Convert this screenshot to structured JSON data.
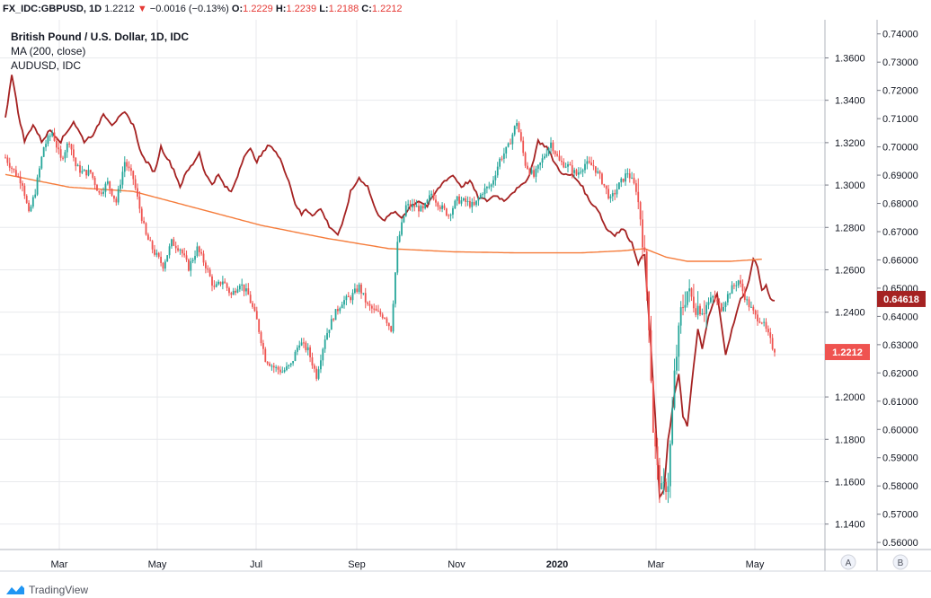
{
  "header": {
    "symbol": "FX_IDC:GBPUSD, 1D",
    "last": "1.2212",
    "arrow": "▼",
    "change": "−0.0016 (−0.13%)",
    "o_label": "O:",
    "o": "1.2229",
    "h_label": "H:",
    "h": "1.2239",
    "l_label": "L:",
    "l": "1.2188",
    "c_label": "C:",
    "c": "1.2212"
  },
  "legend": {
    "title": "British Pound / U.S. Dollar, 1D, IDC",
    "ma": "MA (200, close)",
    "overlay": "AUDUSD, IDC"
  },
  "scale_buttons": {
    "a": "A",
    "b": "B"
  },
  "footer": {
    "brand": "TradingView"
  },
  "colors": {
    "up": "#26a69a",
    "down": "#ef5350",
    "ma": "#f57c3b",
    "overlay": "#a52222",
    "grid": "#e8eaed"
  },
  "chart_data": {
    "type": "candlestick",
    "title": "British Pound / U.S. Dollar, 1D, IDC",
    "x_tick_labels": [
      "Mar",
      "May",
      "Jul",
      "Sep",
      "Nov",
      "2020",
      "Mar",
      "May"
    ],
    "right_axis": {
      "range": [
        1.128,
        1.378
      ],
      "ticks": [
        "1.3600",
        "1.3400",
        "1.3200",
        "1.3000",
        "1.2800",
        "1.2600",
        "1.2400",
        "1.2200",
        "1.2000",
        "1.1800",
        "1.1600",
        "1.1400"
      ],
      "last_price_label": "1.2212"
    },
    "far_right_axis": {
      "range": [
        0.5575,
        0.745
      ],
      "ticks": [
        "0.74000",
        "0.73000",
        "0.72000",
        "0.71000",
        "0.70000",
        "0.69000",
        "0.68000",
        "0.67000",
        "0.66000",
        "0.65000",
        "0.64000",
        "0.63000",
        "0.62000",
        "0.61000",
        "0.60000",
        "0.59000",
        "0.58000",
        "0.57000",
        "0.56000"
      ],
      "last_price_label": "0.64618"
    },
    "series": [
      {
        "name": "GBPUSD",
        "axis": "right",
        "close_anchors": [
          [
            0,
            1.313
          ],
          [
            3,
            1.308
          ],
          [
            8,
            1.301
          ],
          [
            11,
            1.286
          ],
          [
            14,
            1.297
          ],
          [
            18,
            1.318
          ],
          [
            22,
            1.325
          ],
          [
            26,
            1.312
          ],
          [
            30,
            1.321
          ],
          [
            33,
            1.309
          ],
          [
            36,
            1.306
          ],
          [
            40,
            1.306
          ],
          [
            44,
            1.296
          ],
          [
            48,
            1.301
          ],
          [
            52,
            1.292
          ],
          [
            56,
            1.311
          ],
          [
            60,
            1.303
          ],
          [
            63,
            1.289
          ],
          [
            66,
            1.276
          ],
          [
            70,
            1.268
          ],
          [
            74,
            1.262
          ],
          [
            78,
            1.273
          ],
          [
            82,
            1.27
          ],
          [
            86,
            1.261
          ],
          [
            90,
            1.27
          ],
          [
            94,
            1.262
          ],
          [
            98,
            1.251
          ],
          [
            102,
            1.255
          ],
          [
            106,
            1.248
          ],
          [
            110,
            1.254
          ],
          [
            114,
            1.248
          ],
          [
            118,
            1.236
          ],
          [
            122,
            1.218
          ],
          [
            126,
            1.214
          ],
          [
            130,
            1.212
          ],
          [
            134,
            1.215
          ],
          [
            138,
            1.226
          ],
          [
            142,
            1.222
          ],
          [
            146,
            1.21
          ],
          [
            150,
            1.228
          ],
          [
            154,
            1.238
          ],
          [
            158,
            1.245
          ],
          [
            162,
            1.247
          ],
          [
            166,
            1.252
          ],
          [
            170,
            1.243
          ],
          [
            174,
            1.24
          ],
          [
            178,
            1.238
          ],
          [
            181,
            1.232
          ],
          [
            184,
            1.272
          ],
          [
            188,
            1.29
          ],
          [
            192,
            1.29
          ],
          [
            196,
            1.288
          ],
          [
            200,
            1.296
          ],
          [
            204,
            1.29
          ],
          [
            208,
            1.286
          ],
          [
            212,
            1.293
          ],
          [
            216,
            1.292
          ],
          [
            220,
            1.29
          ],
          [
            224,
            1.297
          ],
          [
            228,
            1.3
          ],
          [
            232,
            1.312
          ],
          [
            236,
            1.318
          ],
          [
            240,
            1.33
          ],
          [
            244,
            1.31
          ],
          [
            248,
            1.304
          ],
          [
            252,
            1.312
          ],
          [
            256,
            1.32
          ],
          [
            260,
            1.311
          ],
          [
            264,
            1.309
          ],
          [
            268,
            1.305
          ],
          [
            272,
            1.31
          ],
          [
            276,
            1.309
          ],
          [
            280,
            1.302
          ],
          [
            284,
            1.293
          ],
          [
            288,
            1.3
          ],
          [
            292,
            1.306
          ],
          [
            296,
            1.298
          ],
          [
            298,
            1.285
          ],
          [
            300,
            1.265
          ],
          [
            302,
            1.235
          ],
          [
            304,
            1.185
          ],
          [
            306,
            1.165
          ],
          [
            308,
            1.155
          ],
          [
            311,
            1.16
          ],
          [
            314,
            1.21
          ],
          [
            317,
            1.24
          ],
          [
            320,
            1.25
          ],
          [
            324,
            1.243
          ],
          [
            328,
            1.242
          ],
          [
            332,
            1.247
          ],
          [
            336,
            1.242
          ],
          [
            340,
            1.25
          ],
          [
            344,
            1.255
          ],
          [
            348,
            1.245
          ],
          [
            352,
            1.238
          ],
          [
            355,
            1.236
          ],
          [
            358,
            1.229
          ],
          [
            361,
            1.221
          ]
        ]
      },
      {
        "name": "MA (200, close)",
        "axis": "right",
        "anchors": [
          [
            0,
            1.305
          ],
          [
            30,
            1.299
          ],
          [
            60,
            1.297
          ],
          [
            90,
            1.289
          ],
          [
            120,
            1.281
          ],
          [
            150,
            1.275
          ],
          [
            180,
            1.27
          ],
          [
            210,
            1.2685
          ],
          [
            240,
            1.268
          ],
          [
            270,
            1.268
          ],
          [
            290,
            1.269
          ],
          [
            300,
            1.27
          ],
          [
            310,
            1.266
          ],
          [
            320,
            1.264
          ],
          [
            340,
            1.264
          ],
          [
            355,
            1.265
          ]
        ]
      },
      {
        "name": "AUDUSD, IDC",
        "axis": "far_right",
        "anchors": [
          [
            0,
            0.71
          ],
          [
            3,
            0.726
          ],
          [
            6,
            0.712
          ],
          [
            9,
            0.702
          ],
          [
            13,
            0.708
          ],
          [
            17,
            0.702
          ],
          [
            21,
            0.706
          ],
          [
            26,
            0.702
          ],
          [
            32,
            0.709
          ],
          [
            37,
            0.702
          ],
          [
            42,
            0.705
          ],
          [
            46,
            0.712
          ],
          [
            50,
            0.708
          ],
          [
            56,
            0.712
          ],
          [
            60,
            0.708
          ],
          [
            64,
            0.697
          ],
          [
            67,
            0.694
          ],
          [
            70,
            0.691
          ],
          [
            73,
            0.7
          ],
          [
            76,
            0.696
          ],
          [
            79,
            0.692
          ],
          [
            82,
            0.686
          ],
          [
            85,
            0.691
          ],
          [
            88,
            0.694
          ],
          [
            91,
            0.698
          ],
          [
            94,
            0.69
          ],
          [
            97,
            0.687
          ],
          [
            100,
            0.69
          ],
          [
            103,
            0.686
          ],
          [
            106,
            0.684
          ],
          [
            109,
            0.69
          ],
          [
            112,
            0.697
          ],
          [
            115,
            0.699
          ],
          [
            118,
            0.695
          ],
          [
            121,
            0.698
          ],
          [
            124,
            0.701
          ],
          [
            127,
            0.698
          ],
          [
            130,
            0.694
          ],
          [
            133,
            0.688
          ],
          [
            136,
            0.68
          ],
          [
            139,
            0.676
          ],
          [
            141,
            0.678
          ],
          [
            144,
            0.676
          ],
          [
            148,
            0.678
          ],
          [
            152,
            0.672
          ],
          [
            156,
            0.669
          ],
          [
            158,
            0.672
          ],
          [
            162,
            0.684
          ],
          [
            166,
            0.689
          ],
          [
            170,
            0.686
          ],
          [
            174,
            0.677
          ],
          [
            178,
            0.674
          ],
          [
            182,
            0.677
          ],
          [
            186,
            0.675
          ],
          [
            190,
            0.679
          ],
          [
            194,
            0.681
          ],
          [
            198,
            0.679
          ],
          [
            202,
            0.684
          ],
          [
            206,
            0.688
          ],
          [
            210,
            0.69
          ],
          [
            214,
            0.686
          ],
          [
            218,
            0.688
          ],
          [
            222,
            0.682
          ],
          [
            226,
            0.681
          ],
          [
            230,
            0.683
          ],
          [
            234,
            0.681
          ],
          [
            238,
            0.684
          ],
          [
            242,
            0.686
          ],
          [
            246,
            0.69
          ],
          [
            250,
            0.702
          ],
          [
            254,
            0.7
          ],
          [
            258,
            0.694
          ],
          [
            262,
            0.69
          ],
          [
            266,
            0.69
          ],
          [
            270,
            0.687
          ],
          [
            274,
            0.681
          ],
          [
            278,
            0.678
          ],
          [
            282,
            0.671
          ],
          [
            286,
            0.669
          ],
          [
            290,
            0.671
          ],
          [
            294,
            0.666
          ],
          [
            297,
            0.659
          ],
          [
            300,
            0.662
          ],
          [
            302,
            0.64
          ],
          [
            305,
            0.604
          ],
          [
            307,
            0.576
          ],
          [
            309,
            0.578
          ],
          [
            311,
            0.596
          ],
          [
            314,
            0.612
          ],
          [
            316,
            0.62
          ],
          [
            318,
            0.605
          ],
          [
            320,
            0.601
          ],
          [
            323,
            0.622
          ],
          [
            325,
            0.636
          ],
          [
            327,
            0.628
          ],
          [
            330,
            0.64
          ],
          [
            334,
            0.648
          ],
          [
            336,
            0.637
          ],
          [
            338,
            0.627
          ],
          [
            342,
            0.638
          ],
          [
            345,
            0.646
          ],
          [
            348,
            0.65
          ],
          [
            351,
            0.66
          ],
          [
            353,
            0.658
          ],
          [
            355,
            0.649
          ],
          [
            357,
            0.651
          ],
          [
            359,
            0.646
          ],
          [
            361,
            0.646
          ]
        ]
      }
    ]
  }
}
